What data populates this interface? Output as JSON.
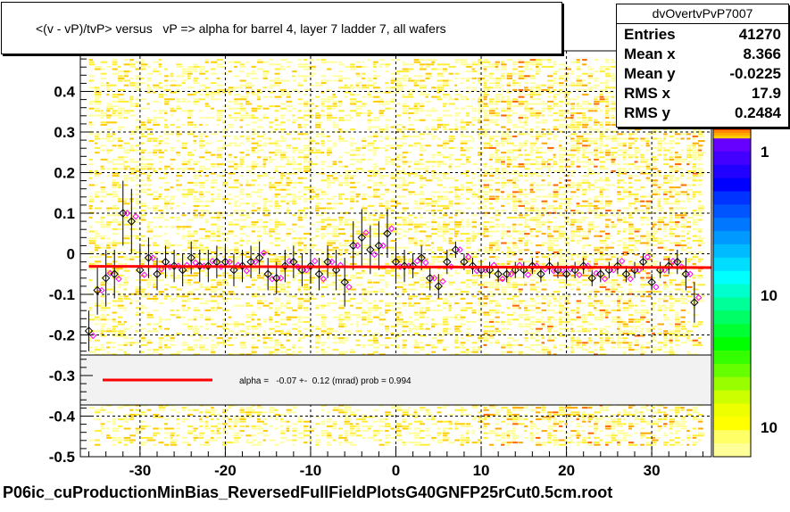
{
  "title": "<(v - vP)/tvP> versus   vP => alpha for barrel 4, layer 7 ladder 7, all wafers",
  "footer": "P06ic_cuProductionMinBias_ReversedFullFieldPlotsG40GNFP25rCut0.5cm.root",
  "stats": {
    "name": "dvOvertvPvP7007",
    "rows": [
      {
        "label": "Entries",
        "value": "41270"
      },
      {
        "label": "Mean x",
        "value": "8.366"
      },
      {
        "label": "Mean y",
        "value": "-0.0225"
      },
      {
        "label": "RMS x",
        "value": "17.9"
      },
      {
        "label": "RMS y",
        "value": "0.2484"
      }
    ]
  },
  "fit_legend": "alpha =   -0.07 +-  0.12 (mrad) prob = 0.994",
  "colors": {
    "fit": "#ff0000",
    "profile_black": "#000000",
    "profile_magenta": "#ff00ff",
    "legend_bg": "#f2f2f2"
  },
  "chart_data": {
    "type": "scatter",
    "subtype": "2D histogram (colz) with profile overlay and linear fit",
    "xlim": [
      -37,
      37
    ],
    "ylim": [
      -0.5,
      0.5
    ],
    "x_ticks": [
      -30,
      -20,
      -10,
      0,
      10,
      20,
      30
    ],
    "y_ticks": [
      -0.5,
      -0.4,
      -0.3,
      -0.2,
      -0.1,
      0,
      0.1,
      0.2,
      0.3,
      0.4
    ],
    "y_tick_labels": [
      "-0.5",
      "-0.4",
      "-0.3",
      "-0.2",
      "-0.1",
      "0",
      "0.1",
      "0.2",
      "0.3",
      "0.4"
    ],
    "grid": true,
    "colorbar_labels": [
      "1",
      "10",
      "10"
    ],
    "fit_line": {
      "x": [
        -36,
        37
      ],
      "y": [
        -0.031,
        -0.034
      ]
    },
    "profile": {
      "x": [
        -36,
        -35,
        -34,
        -33,
        -32,
        -31,
        -30,
        -29,
        -28,
        -27,
        -26,
        -25,
        -24,
        -23,
        -22,
        -21,
        -20,
        -19,
        -18,
        -17,
        -16,
        -15,
        -14,
        -13,
        -12,
        -11,
        -10,
        -9,
        -8,
        -7,
        -6,
        -5,
        -4,
        -3,
        -2,
        -1,
        0,
        1,
        2,
        3,
        4,
        5,
        6,
        7,
        8,
        9,
        10,
        11,
        12,
        13,
        14,
        15,
        16,
        17,
        18,
        19,
        20,
        21,
        22,
        23,
        24,
        25,
        26,
        27,
        28,
        29,
        30,
        31,
        32,
        33,
        34,
        35
      ],
      "y": [
        -0.19,
        -0.09,
        -0.06,
        -0.05,
        0.1,
        0.08,
        -0.04,
        -0.01,
        -0.05,
        -0.02,
        -0.03,
        -0.04,
        -0.01,
        -0.03,
        -0.03,
        -0.02,
        -0.02,
        -0.04,
        -0.03,
        -0.02,
        -0.01,
        -0.05,
        -0.06,
        -0.03,
        -0.02,
        -0.04,
        -0.03,
        -0.05,
        -0.02,
        -0.04,
        -0.07,
        0.02,
        0.04,
        0.01,
        0.02,
        0.05,
        -0.02,
        -0.03,
        -0.03,
        -0.01,
        -0.06,
        -0.08,
        -0.02,
        0.01,
        -0.02,
        -0.03,
        -0.04,
        -0.04,
        -0.05,
        -0.05,
        -0.04,
        -0.04,
        -0.03,
        -0.05,
        -0.03,
        -0.04,
        -0.05,
        -0.04,
        -0.03,
        -0.06,
        -0.05,
        -0.04,
        -0.03,
        -0.05,
        -0.04,
        -0.02,
        -0.07,
        -0.04,
        -0.03,
        -0.02,
        -0.05,
        -0.12
      ],
      "err": [
        0.05,
        0.06,
        0.07,
        0.06,
        0.08,
        0.08,
        0.06,
        0.05,
        0.04,
        0.04,
        0.04,
        0.04,
        0.04,
        0.04,
        0.04,
        0.04,
        0.04,
        0.04,
        0.04,
        0.04,
        0.04,
        0.04,
        0.04,
        0.04,
        0.04,
        0.04,
        0.04,
        0.04,
        0.04,
        0.05,
        0.06,
        0.06,
        0.07,
        0.06,
        0.06,
        0.06,
        0.05,
        0.04,
        0.03,
        0.03,
        0.03,
        0.03,
        0.03,
        0.02,
        0.02,
        0.02,
        0.02,
        0.02,
        0.02,
        0.02,
        0.02,
        0.02,
        0.02,
        0.02,
        0.02,
        0.02,
        0.02,
        0.02,
        0.02,
        0.02,
        0.02,
        0.02,
        0.02,
        0.02,
        0.02,
        0.02,
        0.02,
        0.02,
        0.02,
        0.03,
        0.04,
        0.05
      ]
    }
  }
}
